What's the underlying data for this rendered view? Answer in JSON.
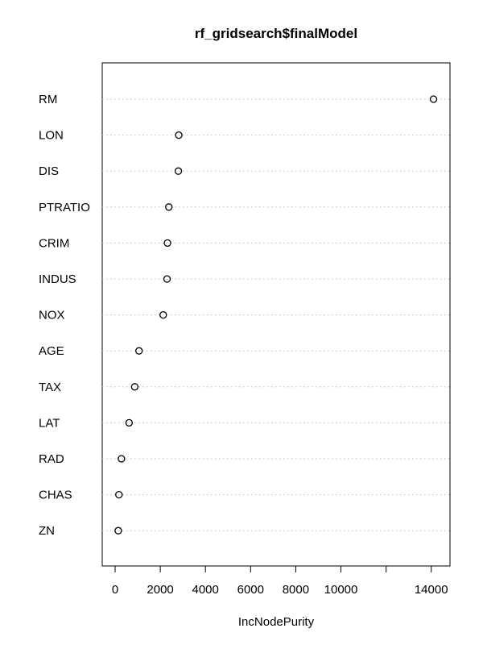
{
  "chart_data": {
    "type": "scatter",
    "title": "rf_gridsearch$finalModel",
    "xlabel": "IncNodePurity",
    "ylabel": "",
    "categories": [
      "RM",
      "LON",
      "DIS",
      "PTRATIO",
      "CRIM",
      "INDUS",
      "NOX",
      "AGE",
      "TAX",
      "LAT",
      "RAD",
      "CHAS",
      "ZN"
    ],
    "values": [
      14100,
      2820,
      2800,
      2380,
      2320,
      2300,
      2130,
      1060,
      870,
      620,
      280,
      170,
      140
    ],
    "xticks": [
      0,
      2000,
      4000,
      6000,
      8000,
      10000,
      14000
    ],
    "xtick_labels": [
      "0",
      "2000",
      "4000",
      "6000",
      "8000",
      "10000",
      "14000"
    ],
    "xlim": [
      -570,
      14830
    ],
    "grid": "dotted horizontal guide lines",
    "legend": "none"
  }
}
